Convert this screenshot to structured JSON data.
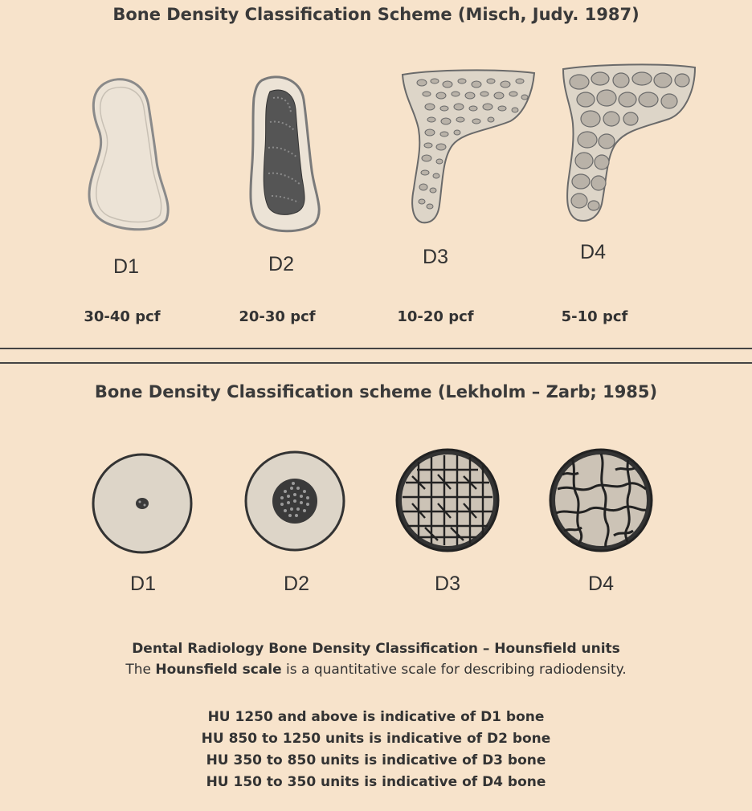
{
  "misch": {
    "title": "Bone Density Classification Scheme (Misch, Judy. 1987)",
    "classes": [
      {
        "label": "D1",
        "density": "30-40 pcf"
      },
      {
        "label": "D2",
        "density": "20-30 pcf"
      },
      {
        "label": "D3",
        "density": "10-20 pcf"
      },
      {
        "label": "D4",
        "density": "5-10 pcf"
      }
    ]
  },
  "lekholm": {
    "title": "Bone Density Classification scheme (Lekholm – Zarb; 1985)",
    "classes": [
      {
        "label": "D1"
      },
      {
        "label": "D2"
      },
      {
        "label": "D3"
      },
      {
        "label": "D4"
      }
    ]
  },
  "hounsfield": {
    "heading": "Dental Radiology Bone Density Classification – Hounsfield units",
    "intro_prefix": "The ",
    "intro_bold": "Hounsfield scale",
    "intro_suffix": " is a quantitative scale for describing radiodensity.",
    "lines": [
      "HU 1250 and above is indicative of D1 bone",
      "HU 850 to 1250 units is indicative of D2 bone",
      "HU 350 to 850 units is indicative of D3 bone",
      "HU 150 to 350 units is indicative of D4 bone"
    ]
  },
  "colors": {
    "background": "#f7e3cb",
    "bone_fill": "#ece3d6",
    "bone_stroke": "#7a7a7a",
    "pore_fill": "#b9b2a8",
    "dense_core": "#4a4a4a",
    "circle_fill": "#ddd5c8"
  }
}
